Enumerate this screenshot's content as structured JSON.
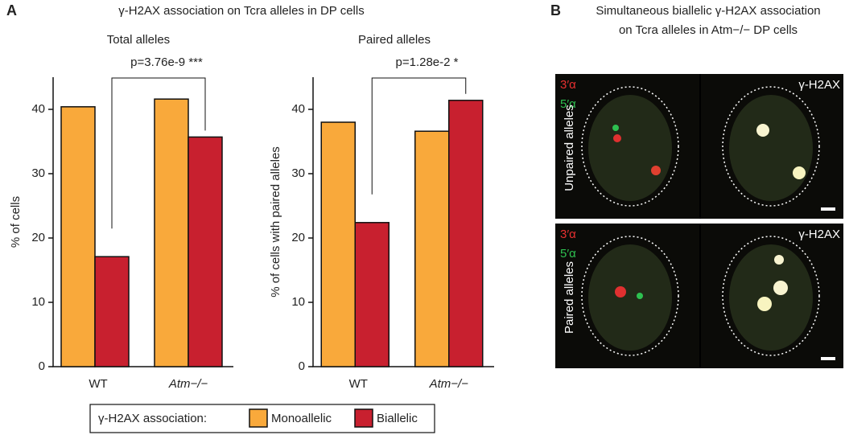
{
  "figure": {
    "panel_a_label": "A",
    "panel_a_title": "γ-H2AX association on Tcra alleles in DP cells"
  },
  "chart_data": [
    {
      "type": "bar",
      "title": "Total alleles",
      "ylabel": "% of cells",
      "annotation": "p=3.76e-9 ***",
      "categories": [
        "WT",
        "Atm−/−"
      ],
      "series": [
        {
          "name": "Monoallelic",
          "color": "#f9a93b",
          "values": [
            40.4,
            41.6
          ]
        },
        {
          "name": "Biallelic",
          "color": "#c8202f",
          "values": [
            17.1,
            35.7
          ]
        }
      ],
      "ylim": [
        0,
        45
      ],
      "yticks": [
        0,
        10,
        20,
        30,
        40
      ],
      "grid": false
    },
    {
      "type": "bar",
      "title": "Paired alleles",
      "ylabel": "% of cells with paired alleles",
      "annotation": "p=1.28e-2 *",
      "categories": [
        "WT",
        "Atm−/−"
      ],
      "series": [
        {
          "name": "Monoallelic",
          "color": "#f9a93b",
          "values": [
            38.0,
            36.6
          ]
        },
        {
          "name": "Biallelic",
          "color": "#c8202f",
          "values": [
            22.4,
            41.4
          ]
        }
      ],
      "ylim": [
        0,
        45
      ],
      "yticks": [
        0,
        10,
        20,
        30,
        40
      ],
      "grid": false
    }
  ],
  "legend": {
    "title": "γ-H2AX association:"
  },
  "panel_b": {
    "label": "B",
    "title": [
      "Simultaneous biallelic γ-H2AX association",
      "on Tcra alleles in Atm−/− DP cells"
    ],
    "rows": [
      {
        "label": "Unpaired alleles",
        "probe_3": "3′α",
        "probe_5": "5′α",
        "stain": "γ-H2AX"
      },
      {
        "label": "Paired alleles",
        "probe_3": "3′α",
        "probe_5": "5′α",
        "stain": "γ-H2AX"
      }
    ]
  }
}
